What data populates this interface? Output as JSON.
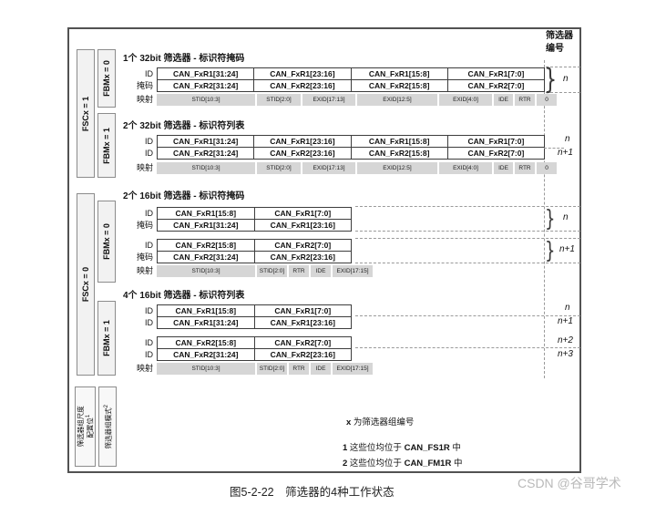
{
  "figure": {
    "caption": "图5-2-22　筛选器的4种工作状态",
    "watermark": "CSDN @谷哥学术"
  },
  "header": {
    "filter_number_line1": "筛选器",
    "filter_number_line2": "编号"
  },
  "sidebar": {
    "fsc_bars": [
      {
        "label": "FSCx = 1"
      },
      {
        "label": "FSCx = 0"
      }
    ],
    "fbm_bars": [
      {
        "label": "FBMx = 0"
      },
      {
        "label": "FBMx = 1"
      },
      {
        "label": "FBMx = 0"
      },
      {
        "label": "FBMx = 1"
      }
    ],
    "legend_scale_line1": "筛选器组尺度",
    "legend_scale_line2": "配置位",
    "legend_scale_sup": "1",
    "legend_mode_text": "筛选器组模式",
    "legend_mode_sup": "2"
  },
  "sections": [
    {
      "title": "1个 32bit 筛选器 - 标识符掩码",
      "rows": [
        {
          "label": "ID",
          "cells": [
            "CAN_FxR1[31:24]",
            "CAN_FxR1[23:16]",
            "CAN_FxR1[15:8]",
            "CAN_FxR1[7:0]"
          ]
        },
        {
          "label": "掩码",
          "cells": [
            "CAN_FxR2[31:24]",
            "CAN_FxR2[23:16]",
            "CAN_FxR2[15:8]",
            "CAN_FxR2[7:0]"
          ]
        }
      ],
      "map_label": "映射",
      "map_cells": [
        "STID[10:3]",
        "STID[2:0]",
        "EXID[17:13]",
        "EXID[12:5]",
        "EXID[4:0]",
        "IDE",
        "RTR",
        "0"
      ],
      "numbers": [
        "n"
      ]
    },
    {
      "title": "2个 32bit 筛选器 - 标识符列表",
      "rows": [
        {
          "label": "ID",
          "cells": [
            "CAN_FxR1[31:24]",
            "CAN_FxR1[23:16]",
            "CAN_FxR1[15:8]",
            "CAN_FxR1[7:0]"
          ]
        },
        {
          "label": "ID",
          "cells": [
            "CAN_FxR2[31:24]",
            "CAN_FxR2[23:16]",
            "CAN_FxR2[15:8]",
            "CAN_FxR2[7:0]"
          ]
        }
      ],
      "map_label": "映射",
      "map_cells": [
        "STID[10:3]",
        "STID[2:0]",
        "EXID[17:13]",
        "EXID[12:5]",
        "EXID[4:0]",
        "IDE",
        "RTR",
        "0"
      ],
      "numbers": [
        "n",
        "n+1"
      ]
    },
    {
      "title": "2个 16bit 筛选器 - 标识符掩码",
      "rows": [
        {
          "label": "ID",
          "cells": [
            "CAN_FxR1[15:8]",
            "CAN_FxR1[7:0]"
          ]
        },
        {
          "label": "掩码",
          "cells": [
            "CAN_FxR1[31:24]",
            "CAN_FxR1[23:16]"
          ]
        },
        {
          "label": "ID",
          "cells": [
            "CAN_FxR2[15:8]",
            "CAN_FxR2[7:0]"
          ]
        },
        {
          "label": "掩码",
          "cells": [
            "CAN_FxR2[31:24]",
            "CAN_FxR2[23:16]"
          ]
        }
      ],
      "map_label": "映射",
      "map_cells": [
        "STID[10:3]",
        "STID[2:0]",
        "RTR",
        "IDE",
        "EXID[17:15]"
      ],
      "numbers": [
        "n",
        "n+1"
      ]
    },
    {
      "title": "4个 16bit 筛选器 - 标识符列表",
      "rows": [
        {
          "label": "ID",
          "cells": [
            "CAN_FxR1[15:8]",
            "CAN_FxR1[7:0]"
          ]
        },
        {
          "label": "ID",
          "cells": [
            "CAN_FxR1[31:24]",
            "CAN_FxR1[23:16]"
          ]
        },
        {
          "label": "ID",
          "cells": [
            "CAN_FxR2[15:8]",
            "CAN_FxR2[7:0]"
          ]
        },
        {
          "label": "ID",
          "cells": [
            "CAN_FxR2[31:24]",
            "CAN_FxR2[23:16]"
          ]
        }
      ],
      "map_label": "映射",
      "map_cells": [
        "STID[10:3]",
        "STID[2:0]",
        "RTR",
        "IDE",
        "EXID[17:15]"
      ],
      "numbers": [
        "n",
        "n+1",
        "n+2",
        "n+3"
      ]
    }
  ],
  "notes": {
    "x_prefix": "x",
    "x_text": " 为筛选器组编号",
    "n1_prefix": "1",
    "n1_text": " 这些位均位于 ",
    "n1_reg": "CAN_FS1R",
    "n1_suffix": " 中",
    "n2_prefix": "2",
    "n2_text": " 这些位均位于 ",
    "n2_reg": "CAN_FM1R",
    "n2_suffix": " 中"
  },
  "glyphs": {
    "brace": "}"
  },
  "colors": {
    "frame_border": "#525252",
    "map_cell_bg": "#d6d6d6",
    "bar_bg": "#f2f2f2",
    "dash": "#9a9a9a",
    "watermark": "#b9b9b9"
  }
}
